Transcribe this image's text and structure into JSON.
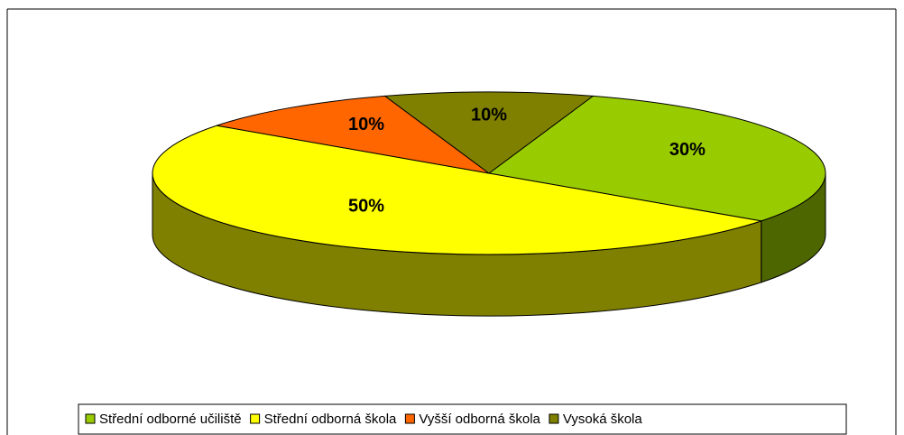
{
  "chart_data": {
    "type": "pie3d",
    "categories": [
      "Střední odborné učiliště",
      "Střední odborná škola",
      "Vyšší odborná škola",
      "Vysoká škola"
    ],
    "values": [
      30,
      50,
      10,
      10
    ],
    "value_labels": [
      "30%",
      "50%",
      "10%",
      "10%"
    ],
    "colors": [
      "#99cc00",
      "#ffff00",
      "#ff6600",
      "#808000"
    ],
    "legend": "bottom"
  }
}
